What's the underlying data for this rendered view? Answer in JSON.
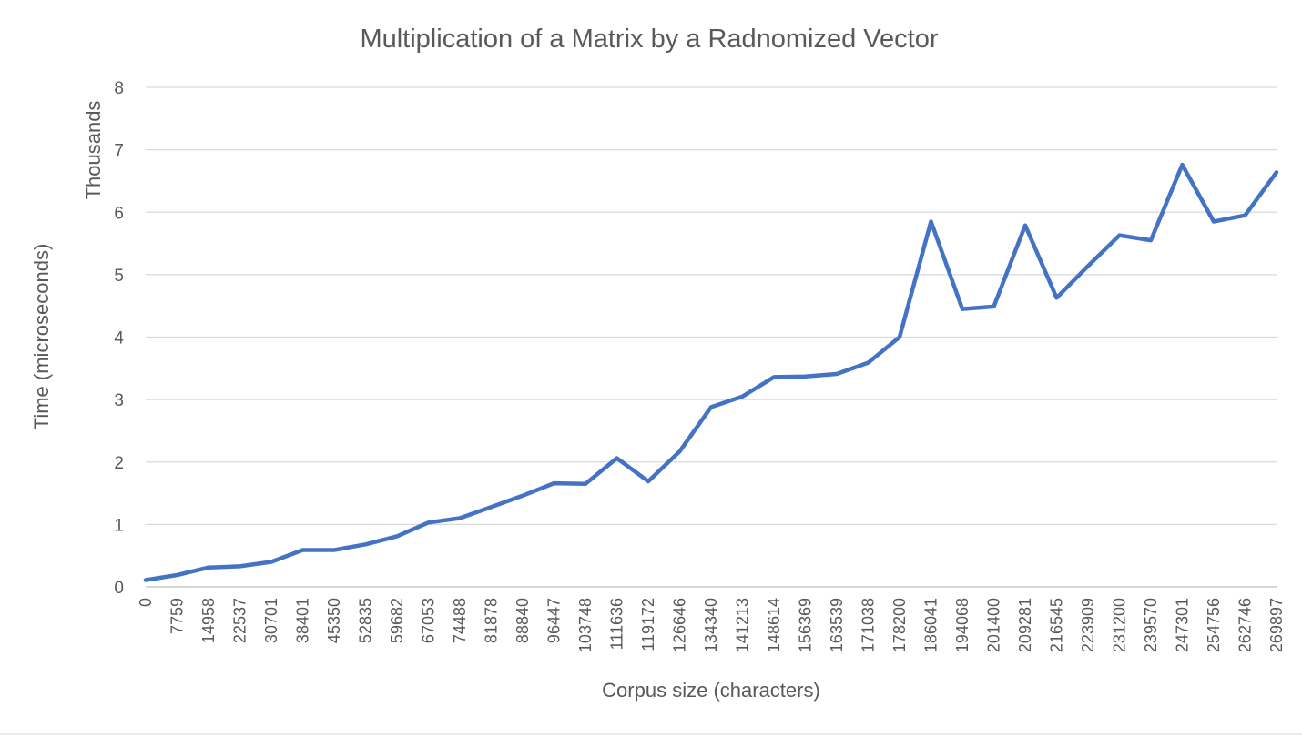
{
  "chart_data": {
    "type": "line",
    "title": "Multiplication of a Matrix by a Radnomized Vector",
    "xlabel": "Corpus size (characters)",
    "ylabel": "Time (microseconds)",
    "y_display_units": "Thousands",
    "ylim": [
      0,
      8
    ],
    "y_ticks": [
      "0",
      "1",
      "2",
      "3",
      "4",
      "5",
      "6",
      "7",
      "8"
    ],
    "grid": true,
    "legend": "none",
    "line_color": "#4472c4",
    "categories": [
      "0",
      "7759",
      "14958",
      "22537",
      "30701",
      "38401",
      "45350",
      "52835",
      "59682",
      "67053",
      "74488",
      "81878",
      "88840",
      "96447",
      "103748",
      "111636",
      "119172",
      "126646",
      "134340",
      "141213",
      "148614",
      "156369",
      "163539",
      "171038",
      "178200",
      "186041",
      "194068",
      "201400",
      "209281",
      "216545",
      "223909",
      "231200",
      "239570",
      "247301",
      "254756",
      "262746",
      "269897"
    ],
    "series": [
      {
        "values": [
          0.11,
          0.19,
          0.31,
          0.33,
          0.4,
          0.59,
          0.59,
          0.68,
          0.81,
          1.03,
          1.1,
          1.28,
          1.46,
          1.66,
          1.65,
          2.06,
          1.69,
          2.17,
          2.88,
          3.05,
          3.36,
          3.37,
          3.41,
          3.59,
          4.0,
          5.85,
          4.45,
          4.49,
          5.79,
          4.63,
          5.14,
          5.63,
          5.55,
          6.76,
          5.85,
          5.95,
          6.64
        ]
      }
    ]
  }
}
